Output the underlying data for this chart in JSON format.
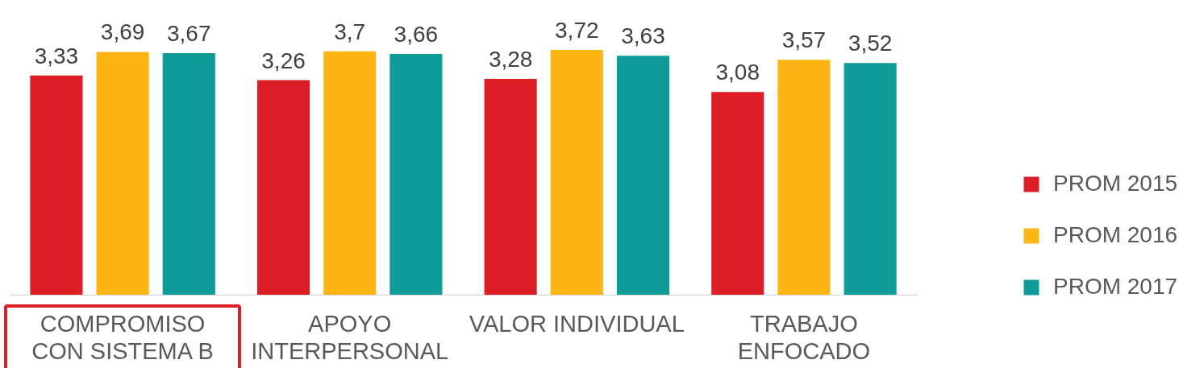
{
  "chart_data": {
    "type": "bar",
    "categories": [
      "COMPROMISO\nCON SISTEMA B",
      "APOYO\nINTERPERSONAL",
      "VALOR INDIVIDUAL",
      "TRABAJO\nENFOCADO"
    ],
    "series": [
      {
        "name": "PROM 2015",
        "color": "#dc1f26",
        "values": [
          3.33,
          3.26,
          3.28,
          3.08
        ],
        "value_labels": [
          "3,33",
          "3,26",
          "3,28",
          "3,08"
        ]
      },
      {
        "name": "PROM 2016",
        "color": "#fdb515",
        "values": [
          3.69,
          3.7,
          3.72,
          3.57
        ],
        "value_labels": [
          "3,69",
          "3,7",
          "3,72",
          "3,57"
        ]
      },
      {
        "name": "PROM 2017",
        "color": "#0f9b98",
        "values": [
          3.67,
          3.66,
          3.63,
          3.52
        ],
        "value_labels": [
          "3,67",
          "3,66",
          "3,63",
          "3,52"
        ]
      }
    ],
    "legend": "right"
  }
}
